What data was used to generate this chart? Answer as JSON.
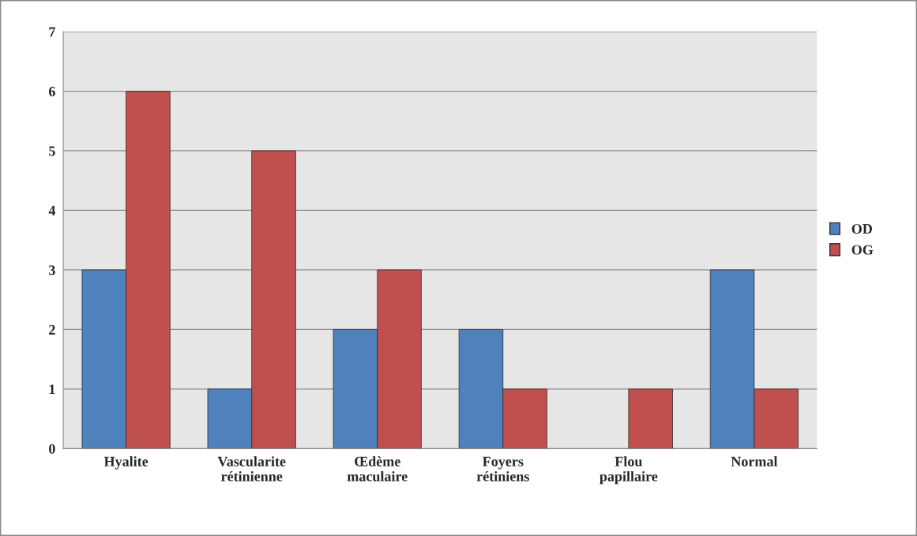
{
  "chart_data": {
    "type": "bar",
    "categories": [
      "Hyalite",
      "Vascularite\nrétinienne",
      "Œdème\nmaculaire",
      "Foyers\nrétiniens",
      "Flou\npapillaire",
      "Normal"
    ],
    "series": [
      {
        "name": "OD",
        "color": "#4f81bd",
        "values": [
          3,
          1,
          2,
          2,
          0,
          3
        ]
      },
      {
        "name": "OG",
        "color": "#c0504d",
        "values": [
          6,
          5,
          3,
          1,
          1,
          1
        ]
      }
    ],
    "ylim": [
      0,
      7
    ],
    "yticks": [
      0,
      1,
      2,
      3,
      4,
      5,
      6,
      7
    ],
    "grid": "y",
    "legend": "right"
  }
}
